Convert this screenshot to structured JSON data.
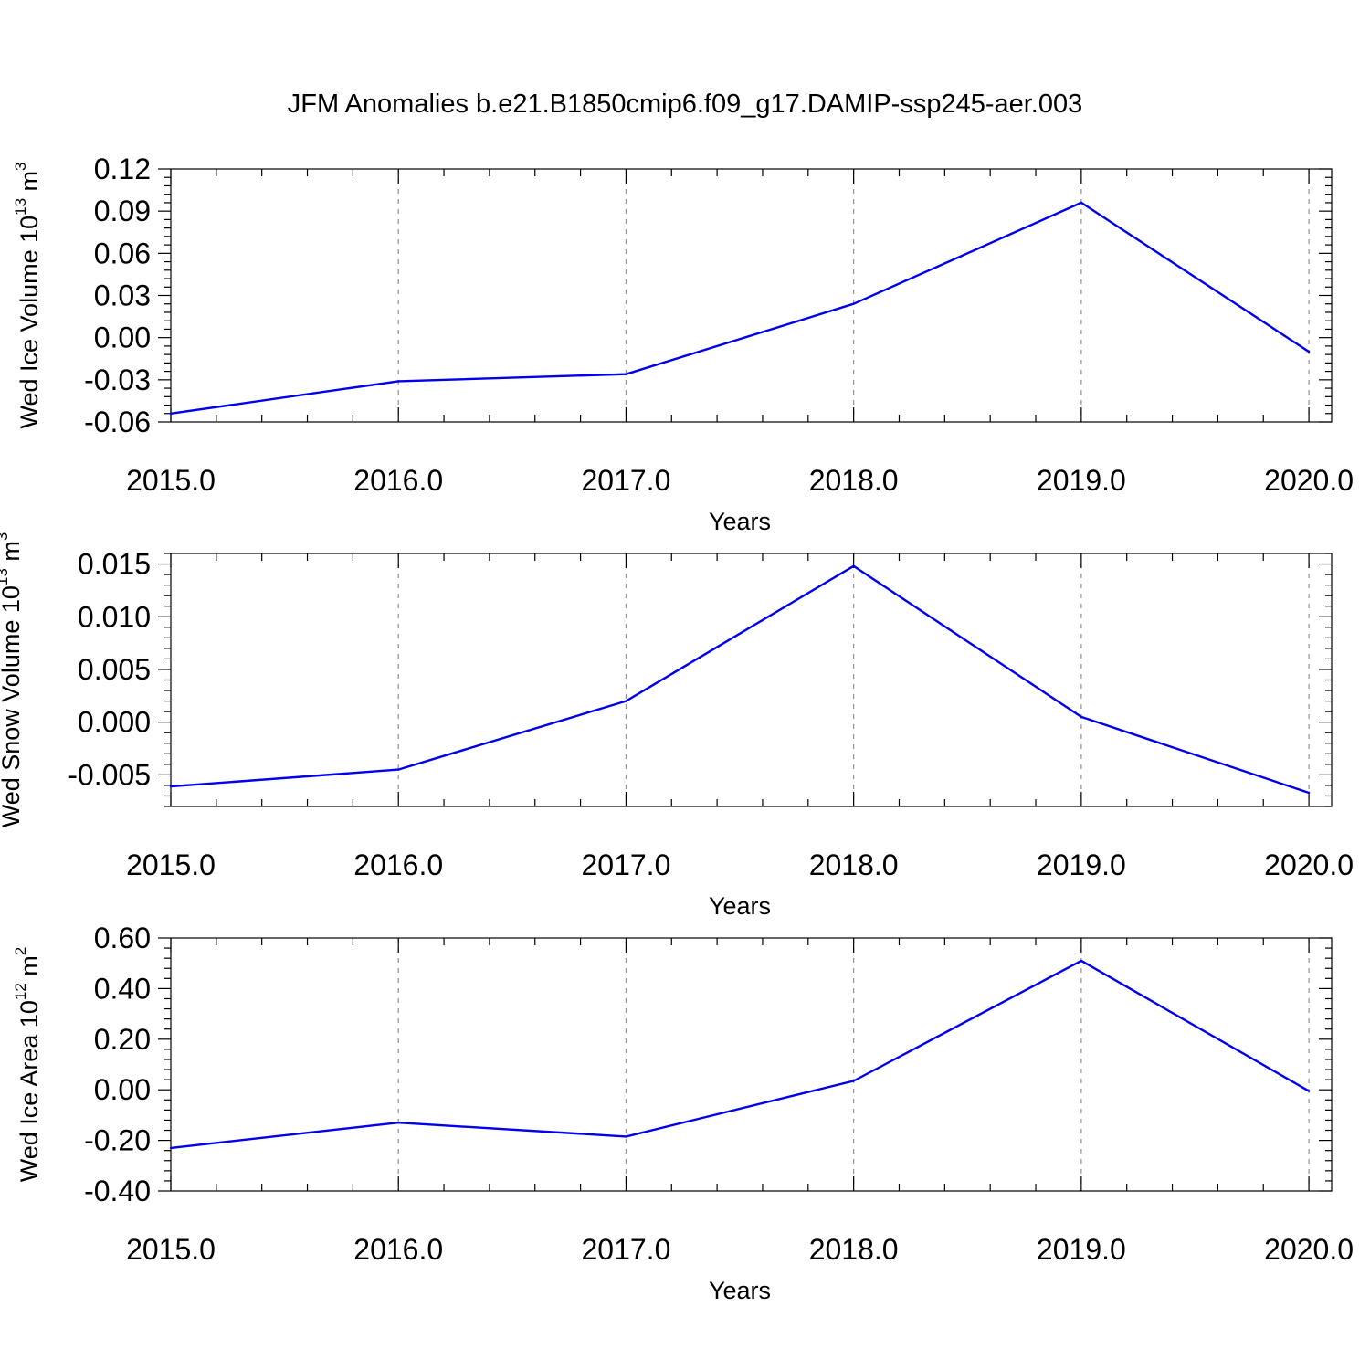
{
  "figure": {
    "title": "JFM Anomalies b.e21.B1850cmip6.f09_g17.DAMIP-ssp245-aer.003"
  },
  "chart_data": [
    {
      "type": "line",
      "xlabel": "Years",
      "ylabel": {
        "main": "Wed Ice Volume 10",
        "exp": "13",
        "unit": " m",
        "unit_exp": "3"
      },
      "x": [
        2015,
        2016,
        2017,
        2018,
        2019,
        2020
      ],
      "values": [
        -0.054,
        -0.031,
        -0.026,
        0.024,
        0.096,
        -0.01
      ],
      "xlim": [
        2015,
        2020.1
      ],
      "ylim": [
        -0.06,
        0.12
      ],
      "xticks": [
        2015,
        2016,
        2017,
        2018,
        2019,
        2020
      ],
      "xtick_labels": [
        "2015.0",
        "2016.0",
        "2017.0",
        "2018.0",
        "2019.0",
        "2020.0"
      ],
      "yticks": [
        -0.06,
        -0.03,
        0.0,
        0.03,
        0.06,
        0.09,
        0.12
      ],
      "ytick_labels": [
        "-0.06",
        "-0.03",
        "0.00",
        "0.03",
        "0.06",
        "0.09",
        "0.12"
      ],
      "grid": "vertical dashed",
      "color": "#0000ee"
    },
    {
      "type": "line",
      "xlabel": "Years",
      "ylabel": {
        "main": "Wed Snow Volume 10",
        "exp": "13",
        "unit": " m",
        "unit_exp": "3"
      },
      "x": [
        2015,
        2016,
        2017,
        2018,
        2019,
        2020
      ],
      "values": [
        -0.0061,
        -0.0045,
        0.002,
        0.0148,
        0.0005,
        -0.0067
      ],
      "xlim": [
        2015,
        2020.1
      ],
      "ylim": [
        -0.008,
        0.016
      ],
      "xticks": [
        2015,
        2016,
        2017,
        2018,
        2019,
        2020
      ],
      "xtick_labels": [
        "2015.0",
        "2016.0",
        "2017.0",
        "2018.0",
        "2019.0",
        "2020.0"
      ],
      "yticks": [
        -0.005,
        0.0,
        0.005,
        0.01,
        0.015
      ],
      "ytick_labels": [
        "-0.005",
        "0.000",
        "0.005",
        "0.010",
        "0.015"
      ],
      "grid": "vertical dashed",
      "color": "#0000ee"
    },
    {
      "type": "line",
      "xlabel": "Years",
      "ylabel": {
        "main": "Wed Ice Area 10",
        "exp": "12",
        "unit": " m",
        "unit_exp": "2"
      },
      "x": [
        2015,
        2016,
        2017,
        2018,
        2019,
        2020
      ],
      "values": [
        -0.23,
        -0.13,
        -0.185,
        0.035,
        0.51,
        -0.005
      ],
      "xlim": [
        2015,
        2020.1
      ],
      "ylim": [
        -0.4,
        0.6
      ],
      "xticks": [
        2015,
        2016,
        2017,
        2018,
        2019,
        2020
      ],
      "xtick_labels": [
        "2015.0",
        "2016.0",
        "2017.0",
        "2018.0",
        "2019.0",
        "2020.0"
      ],
      "yticks": [
        -0.4,
        -0.2,
        0.0,
        0.2,
        0.4,
        0.6
      ],
      "ytick_labels": [
        "-0.40",
        "-0.20",
        "0.00",
        "0.20",
        "0.40",
        "0.60"
      ],
      "grid": "vertical dashed",
      "color": "#0000ee"
    }
  ]
}
